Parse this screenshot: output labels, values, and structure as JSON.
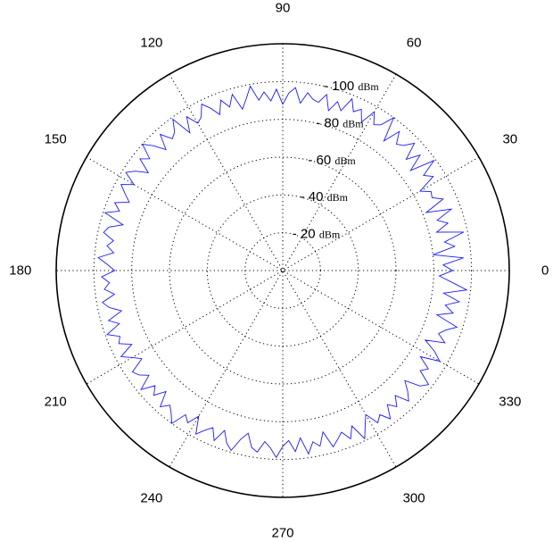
{
  "chart_data": {
    "type": "polar-line",
    "angle_unit": "degrees",
    "angle_ticks": [
      0,
      30,
      60,
      90,
      120,
      150,
      180,
      210,
      240,
      270,
      300,
      330
    ],
    "angle_tick_labels": [
      "0",
      "30",
      "60",
      "90",
      "120",
      "150",
      "180",
      "210",
      "240",
      "270",
      "300",
      "330"
    ],
    "radial_ticks": [
      20,
      40,
      60,
      80,
      100
    ],
    "radial_tick_labels": [
      "20",
      "40",
      "60",
      "80",
      "100"
    ],
    "radial_unit": "dBm",
    "rlim": [
      0,
      120
    ],
    "grid": true,
    "series": [
      {
        "color": "#1a1aff",
        "theta": [
          0,
          2,
          4,
          6,
          8,
          10,
          12,
          14,
          16,
          18,
          20,
          22,
          24,
          26,
          28,
          30,
          32,
          34,
          36,
          38,
          40,
          42,
          44,
          46,
          48,
          50,
          52,
          54,
          56,
          58,
          60,
          62,
          64,
          66,
          68,
          70,
          72,
          74,
          76,
          78,
          80,
          82,
          84,
          86,
          88,
          90,
          92,
          94,
          96,
          98,
          100,
          102,
          104,
          106,
          108,
          110,
          112,
          114,
          116,
          118,
          120,
          122,
          124,
          126,
          128,
          130,
          132,
          134,
          136,
          138,
          140,
          142,
          144,
          146,
          148,
          150,
          152,
          154,
          156,
          158,
          160,
          162,
          164,
          166,
          168,
          170,
          172,
          174,
          176,
          178,
          180,
          182,
          184,
          186,
          188,
          190,
          192,
          194,
          196,
          198,
          200,
          202,
          204,
          206,
          208,
          210,
          212,
          214,
          216,
          218,
          220,
          222,
          224,
          226,
          228,
          230,
          232,
          234,
          236,
          238,
          240,
          242,
          244,
          246,
          248,
          250,
          252,
          254,
          256,
          258,
          260,
          262,
          264,
          266,
          268,
          270,
          272,
          274,
          276,
          278,
          280,
          282,
          284,
          286,
          288,
          290,
          292,
          294,
          296,
          298,
          300,
          302,
          304,
          306,
          308,
          310,
          312,
          314,
          316,
          318,
          320,
          322,
          324,
          326,
          328,
          330,
          332,
          334,
          336,
          338,
          340,
          342,
          344,
          346,
          348,
          350,
          352,
          354,
          356,
          358
        ],
        "r": [
          90,
          85,
          96,
          80,
          92,
          87,
          98,
          84,
          91,
          86,
          95,
          82,
          93,
          88,
          89,
          84,
          94,
          90,
          99,
          86,
          95,
          88,
          97,
          92,
          90,
          96,
          87,
          100,
          93,
          91,
          97,
          89,
          95,
          92,
          98,
          90,
          94,
          88,
          96,
          91,
          92,
          95,
          89,
          97,
          94,
          88,
          96,
          90,
          95,
          91,
          99,
          93,
          88,
          97,
          91,
          96,
          89,
          94,
          98,
          92,
          90,
          96,
          88,
          99,
          93,
          91,
          97,
          89,
          95,
          100,
          92,
          96,
          88,
          94,
          98,
          91,
          97,
          93,
          89,
          96,
          92,
          99,
          88,
          95,
          97,
          91,
          94,
          90,
          98,
          93,
          89,
          96,
          92,
          95,
          90,
          97,
          94,
          88,
          96,
          91,
          99,
          93,
          95,
          89,
          97,
          92,
          88,
          96,
          94,
          90,
          98,
          91,
          95,
          89,
          97,
          93,
          96,
          100,
          92,
          95,
          89,
          98,
          94,
          91,
          97,
          90,
          96,
          99,
          92,
          88,
          95,
          97,
          91,
          94,
          99,
          93,
          90,
          96,
          89,
          98,
          92,
          95,
          88,
          97,
          94,
          91,
          96,
          90,
          99,
          93,
          88,
          95,
          92,
          97,
          90,
          94,
          89,
          96,
          92,
          87,
          95,
          98,
          90,
          93,
          86,
          96,
          91,
          84,
          94,
          89,
          92,
          97,
          85,
          93,
          88,
          95,
          86,
          98,
          90,
          83
        ]
      }
    ]
  }
}
